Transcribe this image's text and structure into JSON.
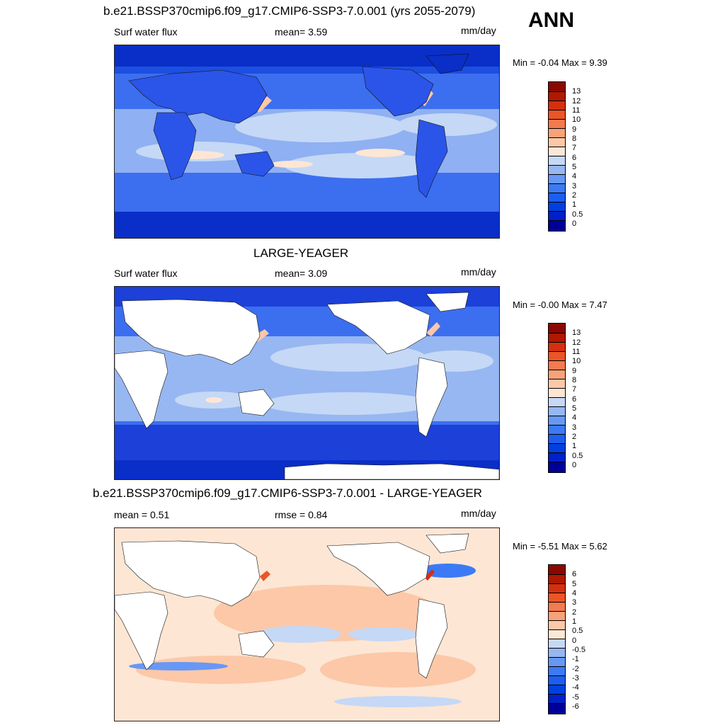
{
  "season": "ANN",
  "panels": [
    {
      "title": "b.e21.BSSP370cmip6.f09_g17.CMIP6-SSP3-7.0.001 (yrs 2055-2079)",
      "left_label": "Surf water flux",
      "center_label": "mean=   3.59",
      "units": "mm/day",
      "minmax": "Min =  -0.04 Max =    9.39",
      "colorbar": {
        "ticks": [
          "0",
          "0.5",
          "1",
          "2",
          "3",
          "4",
          "5",
          "6",
          "7",
          "8",
          "9",
          "10",
          "11",
          "12",
          "13"
        ],
        "colors": [
          "#000098",
          "#0020c8",
          "#0040e0",
          "#1c5ef0",
          "#3c7af5",
          "#6798f5",
          "#97b7f2",
          "#c5d8f5",
          "#fde6d4",
          "#fcc8a8",
          "#f8a27a",
          "#f47a50",
          "#ec5526",
          "#d43010",
          "#b01800",
          "#8a0800"
        ]
      }
    },
    {
      "title": "LARGE-YEAGER",
      "left_label": "Surf water flux",
      "center_label": "mean=   3.09",
      "units": "mm/day",
      "minmax": "Min =  -0.00 Max =    7.47",
      "colorbar": {
        "ticks": [
          "0",
          "0.5",
          "1",
          "2",
          "3",
          "4",
          "5",
          "6",
          "7",
          "8",
          "9",
          "10",
          "11",
          "12",
          "13"
        ],
        "colors": [
          "#000098",
          "#0020c8",
          "#0040e0",
          "#1c5ef0",
          "#3c7af5",
          "#6798f5",
          "#97b7f2",
          "#c5d8f5",
          "#fde6d4",
          "#fcc8a8",
          "#f8a27a",
          "#f47a50",
          "#ec5526",
          "#d43010",
          "#b01800",
          "#8a0800"
        ]
      }
    },
    {
      "title": "b.e21.BSSP370cmip6.f09_g17.CMIP6-SSP3-7.0.001 - LARGE-YEAGER",
      "left_label": "mean =    0.51",
      "center_label": "rmse =    0.84",
      "units": "mm/day",
      "minmax": "Min =  -5.51 Max =    5.62",
      "colorbar": {
        "ticks": [
          "-6",
          "-5",
          "-4",
          "-3",
          "-2",
          "-1",
          "-0.5",
          "0",
          "0.5",
          "1",
          "2",
          "3",
          "4",
          "5",
          "6"
        ],
        "colors": [
          "#000098",
          "#0020c8",
          "#0040e0",
          "#1c5ef0",
          "#3c7af5",
          "#6798f5",
          "#97b7f2",
          "#c5d8f5",
          "#fde6d4",
          "#fcc8a8",
          "#f8a27a",
          "#f47a50",
          "#ec5526",
          "#d43010",
          "#b01800",
          "#8a0800"
        ]
      }
    }
  ]
}
